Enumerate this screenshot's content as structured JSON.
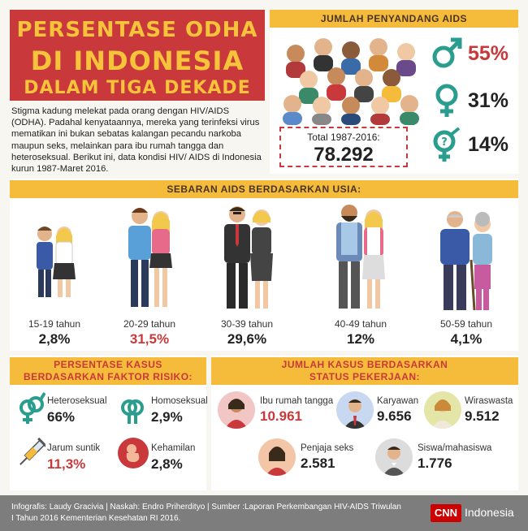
{
  "title": {
    "line1": "PERSENTASE ODHA",
    "line2": "DI INDONESIA",
    "line3": "DALAM TIGA DEKADE"
  },
  "intro": "Stigma kadung melekat pada orang dengan HIV/AIDS (ODHA). Padahal kenyataannya, mereka yang terinfeksi virus mematikan ini bukan sebatas kalangan pecandu narkoba maupun seks, melainkan para ibu rumah tangga dan heteroseksual. Berikut ini, data kondisi HIV/ AIDS di Indonesia kurun 1987-Maret 2016.",
  "count_section": {
    "heading": "JUMLAH PENYANDANG AIDS",
    "total_label": "Total 1987-2016:",
    "total_value": "78.292",
    "genders": [
      {
        "icon": "male-icon",
        "value": "55%",
        "color": "#c9393b"
      },
      {
        "icon": "female-icon",
        "value": "31%",
        "color": "#222222"
      },
      {
        "icon": "unknown-gender-icon",
        "value": "14%",
        "color": "#222222"
      }
    ]
  },
  "age_section": {
    "heading": "SEBARAN AIDS BERDASARKAN USIA:",
    "groups": [
      {
        "label": "15-19 tahun",
        "value": "2,8%",
        "color": "#222222"
      },
      {
        "label": "20-29 tahun",
        "value": "31,5%",
        "color": "#c9393b"
      },
      {
        "label": "30-39 tahun",
        "value": "29,6%",
        "color": "#222222"
      },
      {
        "label": "40-49 tahun",
        "value": "12%",
        "color": "#222222"
      },
      {
        "label": "50-59 tahun",
        "value": "4,1%",
        "color": "#222222"
      }
    ]
  },
  "risk_section": {
    "heading_line1": "PERSENTASE KASUS",
    "heading_line2": "BERDASARKAN FAKTOR RISIKO:",
    "items": [
      {
        "label": "Heteroseksual",
        "value": "66%",
        "icon": "heterosexual-icon",
        "color": "#222222"
      },
      {
        "label": "Homoseksual",
        "value": "2,9%",
        "icon": "homosexual-icon",
        "color": "#222222"
      },
      {
        "label": "Jarum suntik",
        "value": "11,3%",
        "icon": "syringe-icon",
        "color": "#c9393b"
      },
      {
        "label": "Kehamilan",
        "value": "2,8%",
        "icon": "pregnancy-icon",
        "color": "#222222"
      }
    ]
  },
  "job_section": {
    "heading_line1": "JUMLAH KASUS BERDASARKAN",
    "heading_line2": "STATUS PEKERJAAN:",
    "items": [
      {
        "label": "Ibu rumah tangga",
        "value": "10.961",
        "icon": "housewife-icon",
        "color": "#c9393b"
      },
      {
        "label": "Karyawan",
        "value": "9.656",
        "icon": "employee-icon",
        "color": "#222222"
      },
      {
        "label": "Wiraswasta",
        "value": "9.512",
        "icon": "entrepreneur-icon",
        "color": "#222222"
      },
      {
        "label": "Penjaja seks",
        "value": "2.581",
        "icon": "sex-worker-icon",
        "color": "#222222"
      },
      {
        "label": "Siswa/mahasiswa",
        "value": "1.776",
        "icon": "student-icon",
        "color": "#222222"
      }
    ]
  },
  "footer": {
    "credits": "Infografis: Laudy Gracivia | Naskah: Endro Priherdityo | Sumber :Laporan Perkembangan HIV-AIDS Triwulan I Tahun 2016 Kementerian Kesehatan RI 2016.",
    "logo": "CNN",
    "brand": "Indonesia"
  }
}
